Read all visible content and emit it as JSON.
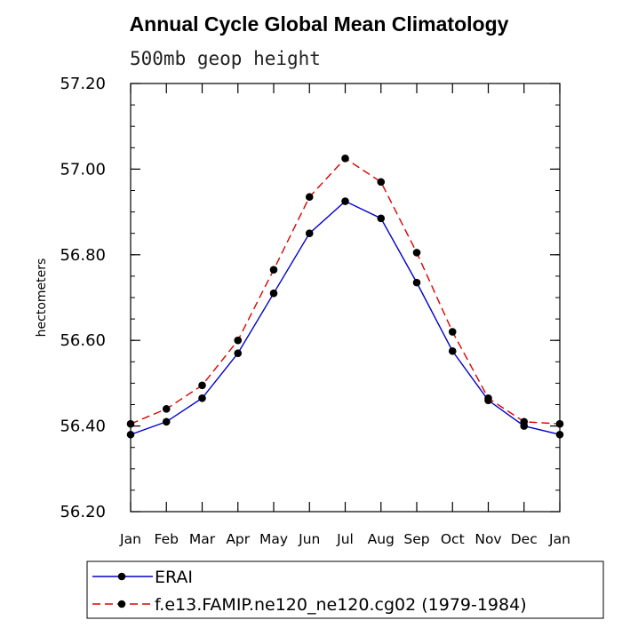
{
  "chart_data": {
    "type": "line",
    "title": "Annual Cycle Global Mean Climatology",
    "subtitle": "500mb geop height",
    "xlabel": "",
    "ylabel": "hectometers",
    "categories": [
      "Jan",
      "Feb",
      "Mar",
      "Apr",
      "May",
      "Jun",
      "Jul",
      "Aug",
      "Sep",
      "Oct",
      "Nov",
      "Dec",
      "Jan"
    ],
    "ylim": [
      56.2,
      57.2
    ],
    "yticks": [
      "56.20",
      "56.40",
      "56.60",
      "56.80",
      "57.00",
      "57.20"
    ],
    "grid": false,
    "legend_placement": "bottom",
    "series": [
      {
        "name": "ERAI",
        "color": "#0000cc",
        "dash": "solid",
        "values": [
          56.38,
          56.41,
          56.465,
          56.57,
          56.71,
          56.85,
          56.925,
          56.885,
          56.735,
          56.575,
          56.46,
          56.4,
          56.38
        ]
      },
      {
        "name": "f.e13.FAMIP.ne120_ne120.cg02 (1979-1984)",
        "color": "#dd0000",
        "dash": "dashed",
        "values": [
          56.405,
          56.44,
          56.495,
          56.6,
          56.765,
          56.935,
          57.025,
          56.97,
          56.805,
          56.62,
          56.465,
          56.41,
          56.405
        ]
      }
    ]
  }
}
